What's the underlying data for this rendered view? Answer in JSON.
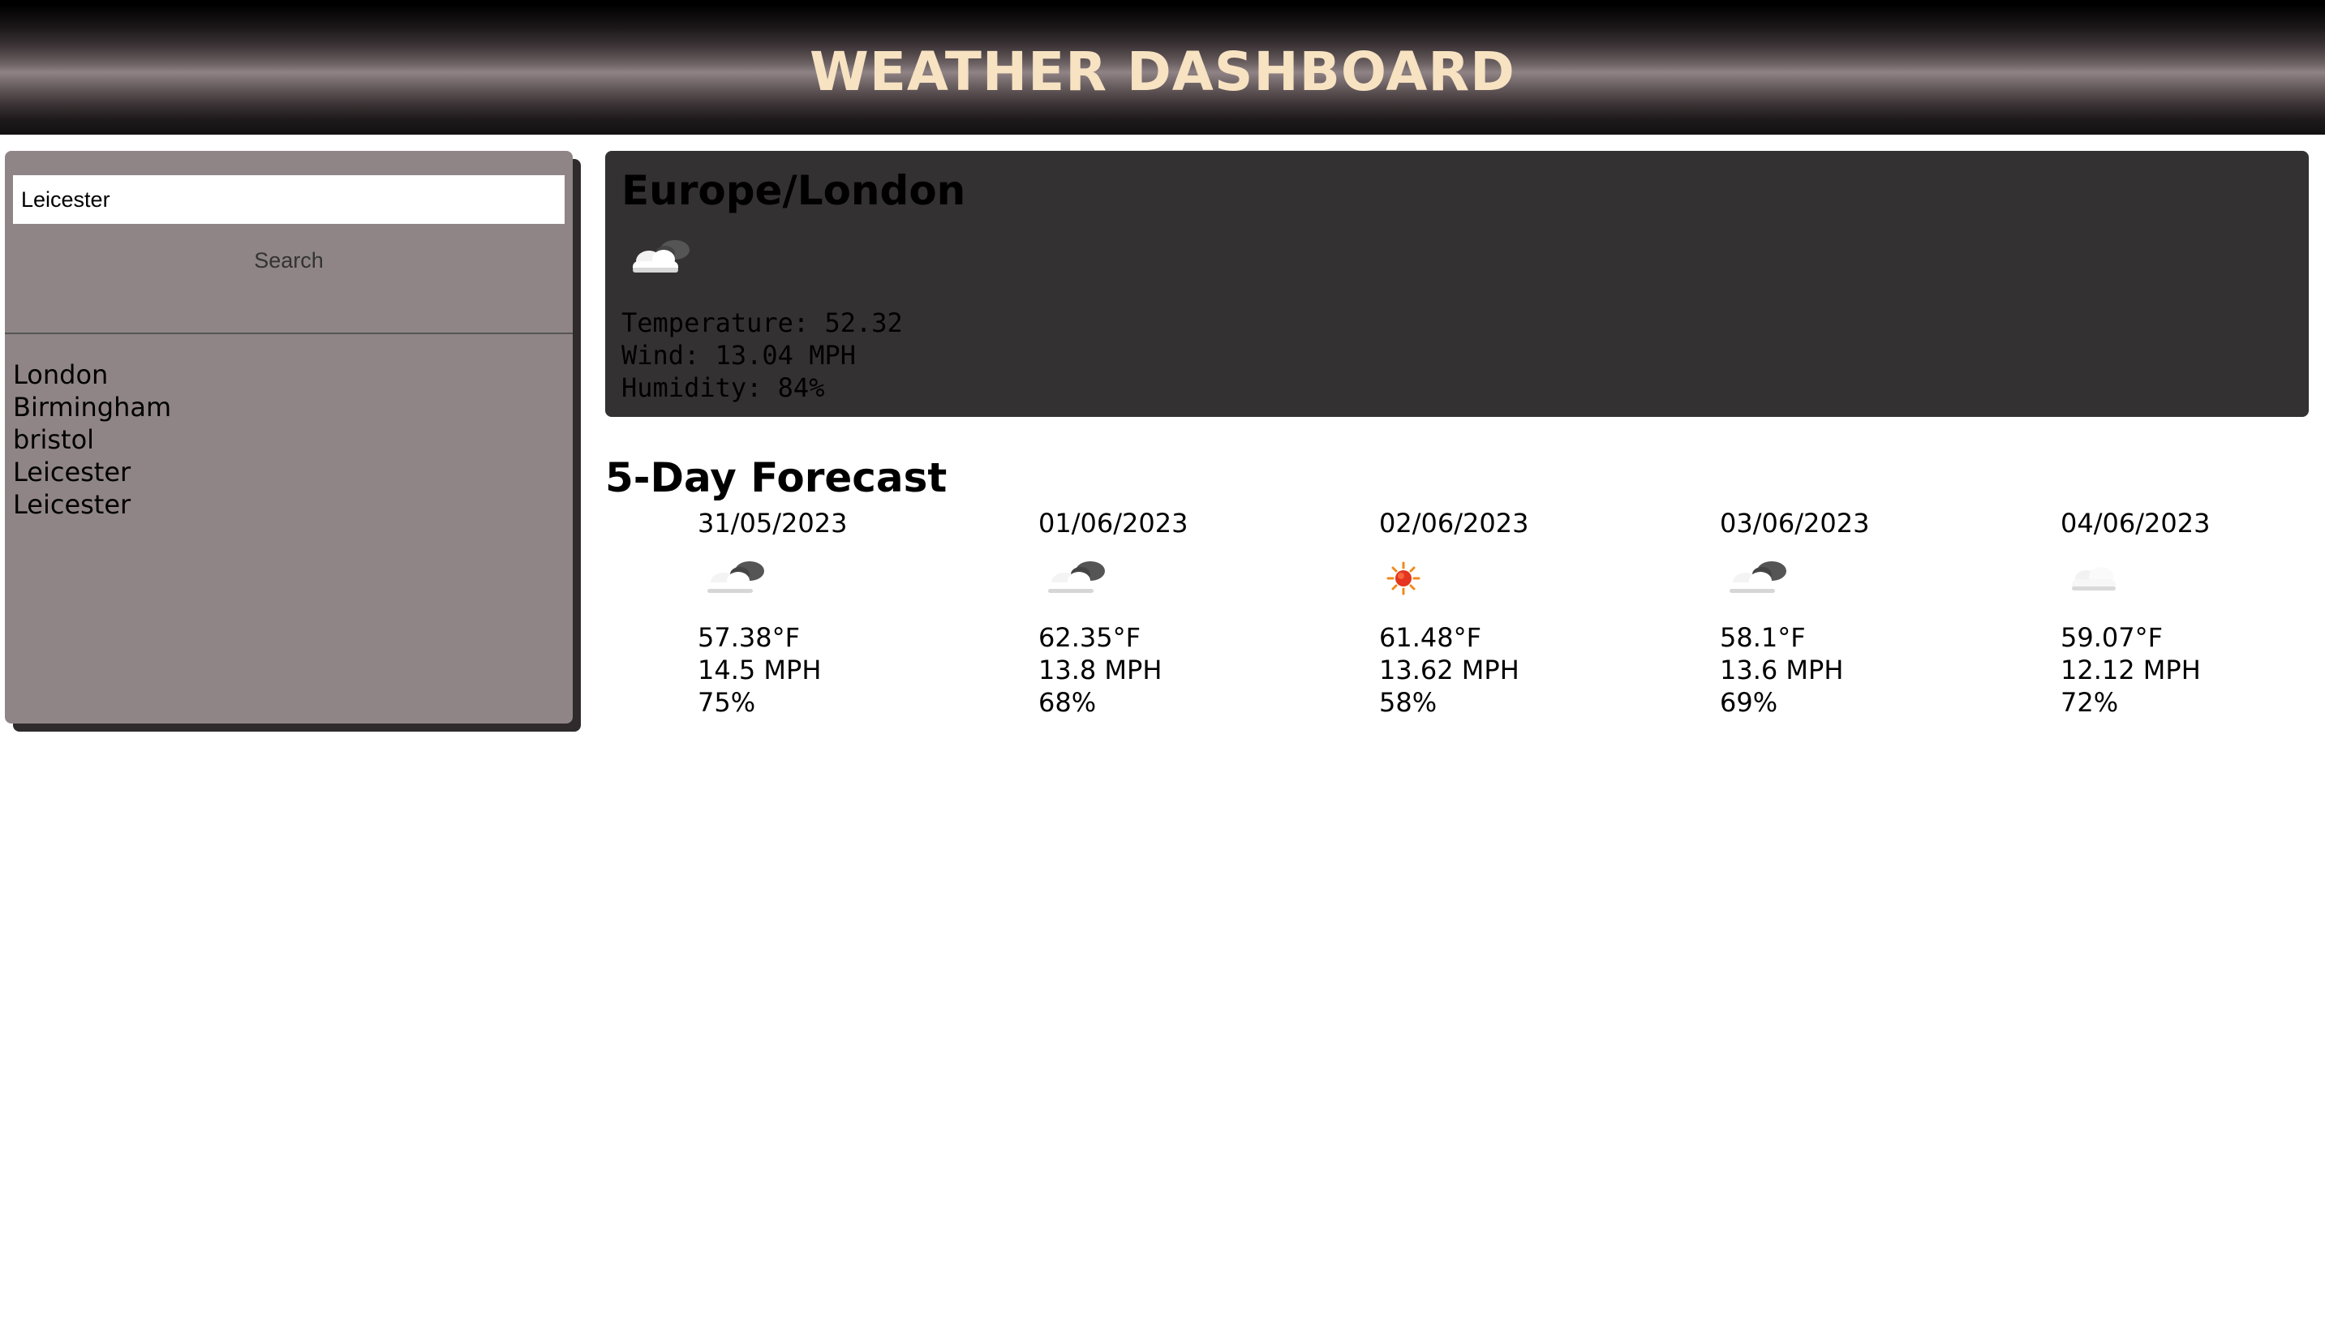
{
  "header": {
    "title": "WEATHER DASHBOARD"
  },
  "search": {
    "input_value": "Leicester",
    "button_label": "Search"
  },
  "history": [
    "London",
    "Birmingham",
    "bristol",
    "Leicester",
    "Leicester"
  ],
  "current": {
    "location": "Europe/London",
    "icon": "partly-cloudy-icon",
    "temperature": "Temperature: 52.32",
    "wind": "Wind: 13.04 MPH",
    "humidity": "Humidity: 84%"
  },
  "forecast": {
    "title": "5-Day Forecast",
    "days": [
      {
        "date": "31/05/2023",
        "icon": "partly-cloudy-icon",
        "temp": "57.38°F",
        "wind": "14.5 MPH",
        "humidity": "75%"
      },
      {
        "date": "01/06/2023",
        "icon": "partly-cloudy-icon",
        "temp": "62.35°F",
        "wind": "13.8 MPH",
        "humidity": "68%"
      },
      {
        "date": "02/06/2023",
        "icon": "sun-icon",
        "temp": "61.48°F",
        "wind": "13.62 MPH",
        "humidity": "58%"
      },
      {
        "date": "03/06/2023",
        "icon": "partly-cloudy-icon",
        "temp": "58.1°F",
        "wind": "13.6 MPH",
        "humidity": "69%"
      },
      {
        "date": "04/06/2023",
        "icon": "cloud-icon",
        "temp": "59.07°F",
        "wind": "12.12 MPH",
        "humidity": "72%"
      }
    ]
  }
}
